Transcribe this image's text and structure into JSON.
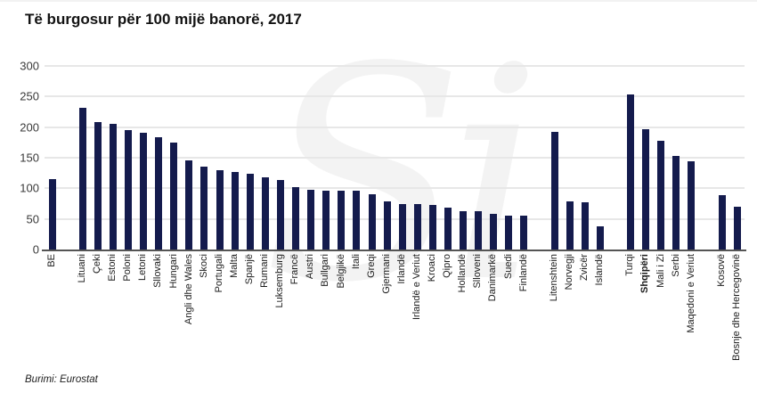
{
  "header": {
    "title": "Të burgosur për 100 mijë banorë, 2017"
  },
  "footer": {
    "source_label": "Burimi: Eurostat"
  },
  "watermark": {
    "text": "Si"
  },
  "colors": {
    "bar": "#141b4d",
    "grid": "#e7e7e7",
    "axis": "#555555",
    "title": "#131313",
    "tick_label": "#3a3a3a",
    "x_label": "#1c1c1c"
  },
  "chart_data": {
    "type": "bar",
    "title": "Të burgosur për 100 mijë banorë, 2017",
    "xlabel": "",
    "ylabel": "",
    "ylim": [
      0,
      300
    ],
    "yticks": [
      0,
      50,
      100,
      150,
      200,
      250,
      300
    ],
    "grid": true,
    "legend": false,
    "highlight_category": "Shqipëri",
    "gaps_after": [
      "BE",
      "Finlandë",
      "Islandë",
      "Maqedoni e Veriut"
    ],
    "categories": [
      "BE",
      "Lituani",
      "Çeki",
      "Estoni",
      "Poloni",
      "Letoni",
      "Sllovaki",
      "Hungari",
      "Angli dhe Wales",
      "Skoci",
      "Portugali",
      "Malta",
      "Spanjë",
      "Rumani",
      "Luksemburg",
      "Francë",
      "Austri",
      "Bullgari",
      "Belgjikë",
      "Itali",
      "Greqi",
      "Gjermani",
      "Irlandë",
      "Irlandë e Veriut",
      "Kroaci",
      "Qipro",
      "Hollandë",
      "Slloveni",
      "Danimarkë",
      "Suedi",
      "Finlandë",
      "Litenshtein",
      "Norvegji",
      "Zvicër",
      "Islandë",
      "Turqi",
      "Shqipëri",
      "Mali i Zi",
      "Serbi",
      "Maqedoni e Veriut",
      "Kosovë",
      "Bosnje dhe Hercegovinë"
    ],
    "values": [
      115,
      231,
      208,
      205,
      195,
      191,
      183,
      175,
      145,
      136,
      130,
      126,
      124,
      118,
      113,
      102,
      98,
      96,
      96,
      96,
      91,
      78,
      75,
      75,
      73,
      68,
      62,
      62,
      59,
      56,
      55,
      192,
      79,
      77,
      38,
      253,
      196,
      178,
      153,
      144,
      89,
      70
    ]
  }
}
